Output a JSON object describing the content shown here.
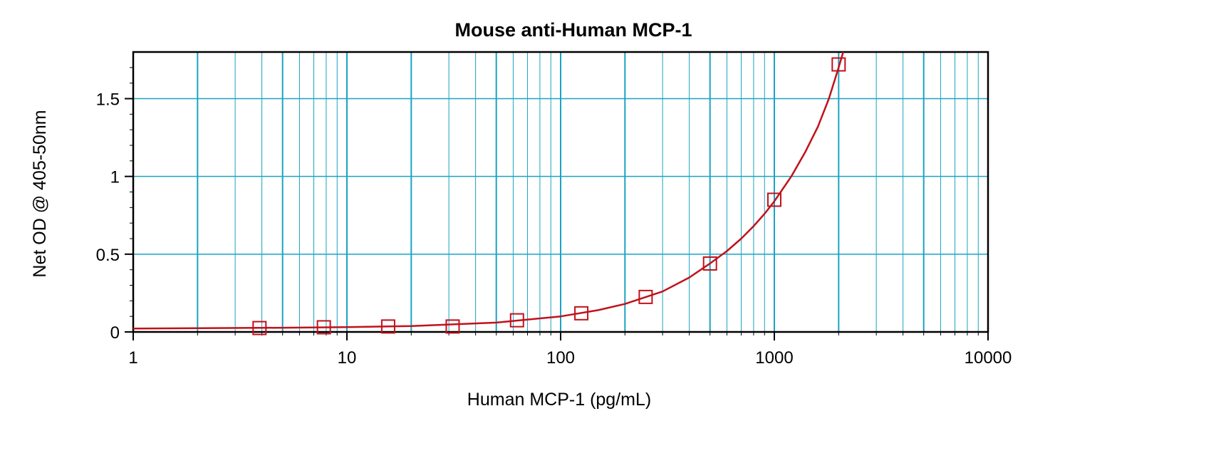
{
  "chart_data": {
    "type": "scatter",
    "title": "Mouse anti-Human MCP-1",
    "xlabel": "Human MCP-1 (pg/mL)",
    "ylabel": "Net OD @ 405-50nm",
    "xscale": "log",
    "yscale": "linear",
    "xlim": [
      1,
      10000
    ],
    "ylim": [
      0,
      1.8
    ],
    "x_ticks": [
      1,
      10,
      100,
      1000,
      10000
    ],
    "x_tick_labels": [
      "1",
      "10",
      "100",
      "1000",
      "10000"
    ],
    "y_ticks": [
      0,
      0.5,
      1,
      1.5
    ],
    "y_tick_labels": [
      "0",
      "0.5",
      "1",
      "1.5"
    ],
    "grid": true,
    "series": [
      {
        "marker": "open-square",
        "color": "#c0121b",
        "x": [
          3.9,
          7.8,
          15.6,
          31.25,
          62.5,
          125,
          250,
          500,
          1000,
          2000
        ],
        "y": [
          0.025,
          0.03,
          0.035,
          0.035,
          0.075,
          0.12,
          0.225,
          0.44,
          0.85,
          1.72
        ]
      }
    ],
    "fit_curve": {
      "color": "#c0121b",
      "x": [
        1,
        2,
        5,
        10,
        20,
        50,
        100,
        150,
        200,
        300,
        400,
        500,
        600,
        700,
        800,
        900,
        1000,
        1200,
        1400,
        1600,
        1800,
        2000,
        2100
      ],
      "y": [
        0.022,
        0.024,
        0.027,
        0.031,
        0.038,
        0.06,
        0.1,
        0.14,
        0.18,
        0.26,
        0.35,
        0.44,
        0.52,
        0.6,
        0.68,
        0.76,
        0.84,
        1.0,
        1.16,
        1.32,
        1.5,
        1.7,
        1.8
      ]
    },
    "colors": {
      "grid": "#1aa3c2",
      "axis": "#000000",
      "series": "#c0121b"
    }
  }
}
